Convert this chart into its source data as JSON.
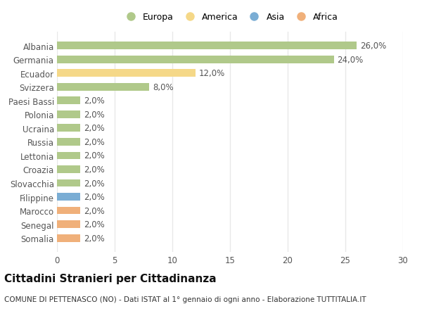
{
  "categories": [
    "Somalia",
    "Senegal",
    "Marocco",
    "Filippine",
    "Slovacchia",
    "Croazia",
    "Lettonia",
    "Russia",
    "Ucraina",
    "Polonia",
    "Paesi Bassi",
    "Svizzera",
    "Ecuador",
    "Germania",
    "Albania"
  ],
  "values": [
    2.0,
    2.0,
    2.0,
    2.0,
    2.0,
    2.0,
    2.0,
    2.0,
    2.0,
    2.0,
    2.0,
    8.0,
    12.0,
    24.0,
    26.0
  ],
  "colors": [
    "#f0b07a",
    "#f0b07a",
    "#f0b07a",
    "#7aadd4",
    "#b0c98a",
    "#b0c98a",
    "#b0c98a",
    "#b0c98a",
    "#b0c98a",
    "#b0c98a",
    "#b0c98a",
    "#b0c98a",
    "#f5d888",
    "#b0c98a",
    "#b0c98a"
  ],
  "labels": [
    "2,0%",
    "2,0%",
    "2,0%",
    "2,0%",
    "2,0%",
    "2,0%",
    "2,0%",
    "2,0%",
    "2,0%",
    "2,0%",
    "2,0%",
    "8,0%",
    "12,0%",
    "24,0%",
    "26,0%"
  ],
  "xlim": [
    0,
    30
  ],
  "xticks": [
    0,
    5,
    10,
    15,
    20,
    25,
    30
  ],
  "legend_items": [
    {
      "label": "Europa",
      "color": "#b0c98a"
    },
    {
      "label": "America",
      "color": "#f5d888"
    },
    {
      "label": "Asia",
      "color": "#7aadd4"
    },
    {
      "label": "Africa",
      "color": "#f0b07a"
    }
  ],
  "title": "Cittadini Stranieri per Cittadinanza",
  "subtitle": "COMUNE DI PETTENASCO (NO) - Dati ISTAT al 1° gennaio di ogni anno - Elaborazione TUTTITALIA.IT",
  "background_color": "#ffffff",
  "bar_height": 0.55,
  "grid_color": "#e8e8e8",
  "label_fontsize": 8.5,
  "ytick_fontsize": 8.5,
  "xtick_fontsize": 8.5,
  "title_fontsize": 11,
  "subtitle_fontsize": 7.5
}
